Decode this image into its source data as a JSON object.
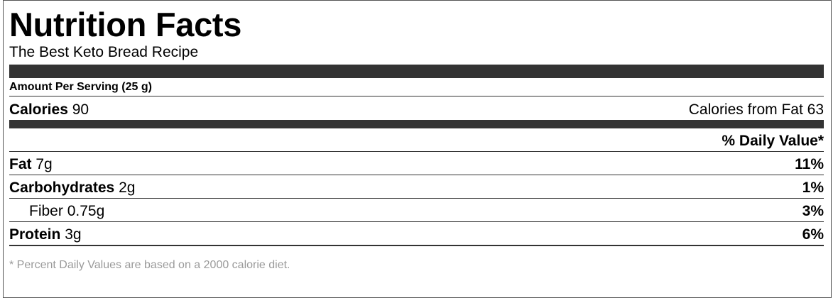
{
  "label": {
    "title": "Nutrition Facts",
    "recipe_name": "The Best Keto Bread Recipe",
    "serving": "Amount Per Serving (25 g)",
    "calories": {
      "label": "Calories",
      "value": "90",
      "from_fat_label": "Calories from Fat",
      "from_fat_value": "63"
    },
    "daily_value_header": "% Daily Value*",
    "nutrients": [
      {
        "name": "Fat",
        "amount": "7g",
        "dv": "11%"
      },
      {
        "name": "Carbohydrates",
        "amount": "2g",
        "dv": "1%"
      },
      {
        "name": "Fiber",
        "amount": "0.75g",
        "dv": "3%"
      },
      {
        "name": "Protein",
        "amount": "3g",
        "dv": "6%"
      }
    ],
    "footnote": "* Percent Daily Values are based on a 2000 calorie diet."
  },
  "colors": {
    "bar": "#333333",
    "border": "#555555",
    "footnote": "#9a9a9a"
  }
}
